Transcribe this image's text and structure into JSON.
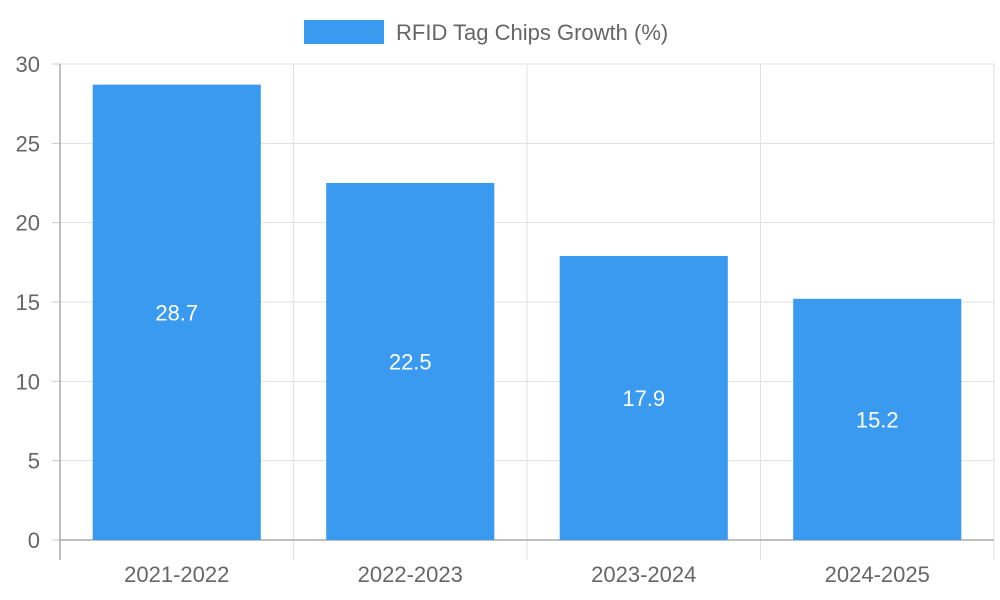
{
  "chart_data": {
    "type": "bar",
    "categories": [
      "2021-2022",
      "2022-2023",
      "2023-2024",
      "2024-2025"
    ],
    "series": [
      {
        "name": "RFID Tag Chips Growth (%)",
        "values": [
          28.7,
          22.5,
          17.9,
          15.2
        ]
      }
    ],
    "ylim": [
      0,
      30
    ],
    "yticks": [
      0,
      5,
      10,
      15,
      20,
      25,
      30
    ],
    "legend_position": "top",
    "grid": true,
    "bar_color": "#3a9af0",
    "title": "",
    "xlabel": "",
    "ylabel": ""
  }
}
